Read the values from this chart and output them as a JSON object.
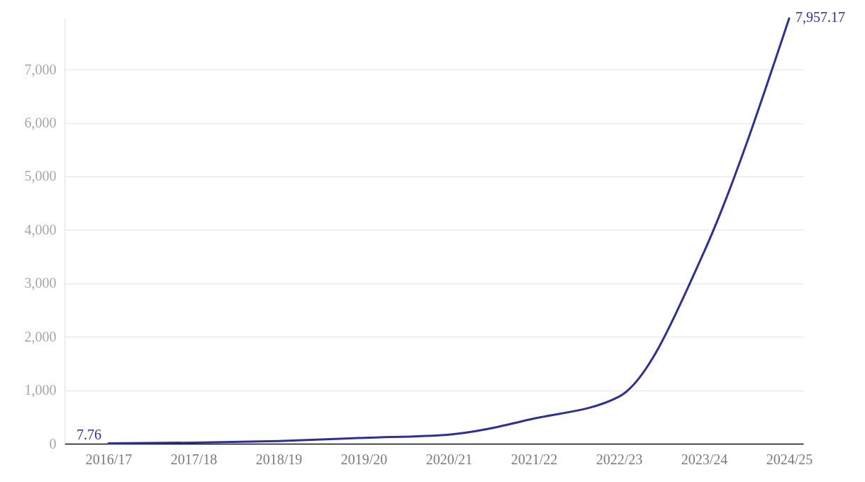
{
  "chart_data": {
    "type": "line",
    "categories": [
      "2016/17",
      "2017/18",
      "2018/19",
      "2019/20",
      "2020/21",
      "2021/22",
      "2022/23",
      "2023/24",
      "2024/25"
    ],
    "series": [
      {
        "color": "#2e3192",
        "values": [
          7.76,
          20,
          50,
          110,
          170,
          470,
          880,
          3590,
          7957.17
        ],
        "value_labels": [
          "7.76",
          null,
          null,
          null,
          null,
          null,
          null,
          null,
          "7,957.17"
        ]
      }
    ],
    "ylim": [
      0,
      7957.17
    ],
    "yticks": [
      0,
      {
        "value": 1000,
        "label": "1,000"
      },
      {
        "value": 2000,
        "label": "2,000"
      },
      {
        "value": 3000,
        "label": "3,000"
      },
      {
        "value": 4000,
        "label": "4,000"
      },
      {
        "value": 5000,
        "label": "5,000"
      },
      {
        "value": 6000,
        "label": "6,000"
      },
      {
        "value": 7000,
        "label": "7,000"
      }
    ],
    "grid": "y",
    "marker": "none",
    "line_style": "solid"
  }
}
